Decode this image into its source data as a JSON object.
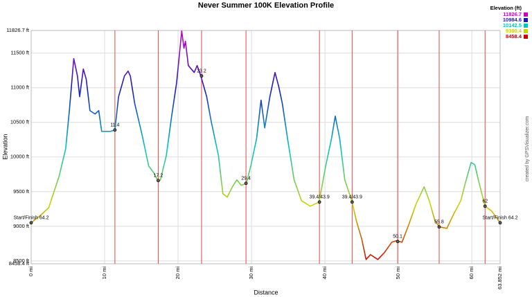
{
  "chart_data": {
    "type": "line",
    "title": "Never Summer 100K Elevation Profile",
    "x_label": "Distance",
    "y_label": "Elevation",
    "credit": "created by GPSVisualizer.com",
    "xlim": [
      0,
      63.852
    ],
    "ylim": [
      8458.4,
      11826.7
    ],
    "xticks": [
      {
        "value": 0,
        "label": "0 mi"
      },
      {
        "value": 10,
        "label": "10 mi"
      },
      {
        "value": 20,
        "label": "20 mi"
      },
      {
        "value": 30,
        "label": "30 mi"
      },
      {
        "value": 40,
        "label": "40 mi"
      },
      {
        "value": 50,
        "label": "50 mi"
      },
      {
        "value": 60,
        "label": "60 mi"
      },
      {
        "value": 63.852,
        "label": "63.852 mi"
      }
    ],
    "yticks": [
      {
        "value": 8458.4,
        "label": "8458.4 ft"
      },
      {
        "value": 8500,
        "label": "8500 ft"
      },
      {
        "value": 9000,
        "label": "9000 ft"
      },
      {
        "value": 9500,
        "label": "9500 ft"
      },
      {
        "value": 10000,
        "label": "10000 ft"
      },
      {
        "value": 10500,
        "label": "10500 ft"
      },
      {
        "value": 11000,
        "label": "11000 ft"
      },
      {
        "value": 11500,
        "label": "11500 ft"
      },
      {
        "value": 11826.7,
        "label": "11826.7 ft"
      }
    ],
    "grid": true,
    "color_scale_title": "Elevation (ft)",
    "color_scale": [
      {
        "value": 11826.7,
        "color": "#cc00cc"
      },
      {
        "value": 10984.6,
        "color": "#1a1ab8"
      },
      {
        "value": 10142.5,
        "color": "#00c4c4"
      },
      {
        "value": 9300.4,
        "color": "#c8d400"
      },
      {
        "value": 8458.4,
        "color": "#cc0000"
      }
    ],
    "series": [
      {
        "x": [
          0,
          1.4,
          2.4,
          2.8,
          3.8,
          4.7,
          5.2,
          5.8,
          6.3,
          6.6,
          7.1,
          7.5,
          8.0,
          8.7,
          9.2,
          9.6,
          10.8,
          11.4,
          11.9,
          12.7,
          13.2,
          13.5,
          14.1,
          15.1,
          16.0,
          16.7,
          17.3,
          17.6,
          18.4,
          19.1,
          19.8,
          20.5,
          20.8,
          21.0,
          21.4,
          22.2,
          22.6,
          23.1,
          23.9,
          24.5,
          25.5,
          26.1,
          26.7,
          27.4,
          28.0,
          28.6,
          29.3,
          29.9,
          30.7,
          31.3,
          31.8,
          32.5,
          33.2,
          33.7,
          34.2,
          34.9,
          35.8,
          36.8,
          38.0,
          39.2,
          40.1,
          40.9,
          41.4,
          42.0,
          42.7,
          43.7,
          44.3,
          45.0,
          45.6,
          46.2,
          47.2,
          48.1,
          49.1,
          49.7,
          50.5,
          51.4,
          52.4,
          53.5,
          54.2,
          55.0,
          55.6,
          56.6,
          57.5,
          58.5,
          59.1,
          59.9,
          60.4,
          61.0,
          61.8,
          62.7,
          63.852
        ],
        "values": [
          9050,
          9170,
          9270,
          9400,
          9720,
          10120,
          10670,
          11420,
          11170,
          10870,
          11270,
          11120,
          10670,
          10620,
          10670,
          10370,
          10370,
          10390,
          10870,
          11170,
          11240,
          11170,
          10770,
          10320,
          9870,
          9770,
          9650,
          9670,
          10020,
          10570,
          11070,
          11820,
          11570,
          11670,
          11320,
          11220,
          11320,
          11170,
          10870,
          10520,
          10020,
          9470,
          9420,
          9570,
          9670,
          9590,
          9620,
          9870,
          10270,
          10820,
          10420,
          10870,
          11220,
          11020,
          10770,
          10270,
          9670,
          9370,
          9290,
          9350,
          9870,
          10270,
          10590,
          10270,
          9670,
          9350,
          9070,
          8820,
          8520,
          8590,
          8520,
          8620,
          8770,
          8790,
          8770,
          9020,
          9320,
          9570,
          9370,
          9070,
          8990,
          8970,
          9170,
          9370,
          9620,
          9920,
          9890,
          9620,
          9290,
          9220,
          9050
        ]
      }
    ],
    "marker_lines": {
      "color": "#e04848",
      "x": [
        11.4,
        17.3,
        23.2,
        29.25,
        39.25,
        43.7,
        49.9,
        55.55,
        61.8
      ]
    },
    "waypoints": [
      {
        "label": "Start/Finish 64.2",
        "x": 0,
        "y": 9050
      },
      {
        "label": "11.4",
        "x": 11.4,
        "y": 10390
      },
      {
        "label": "17.2",
        "x": 17.3,
        "y": 9660
      },
      {
        "label": "23.2",
        "x": 23.2,
        "y": 11170
      },
      {
        "label": "29.4",
        "x": 29.25,
        "y": 9620
      },
      {
        "label": "39.4/43.9",
        "x": 39.25,
        "y": 9350
      },
      {
        "label": "39.4/43.9",
        "x": 43.7,
        "y": 9350
      },
      {
        "label": "50.1",
        "x": 49.9,
        "y": 8780
      },
      {
        "label": "55.8",
        "x": 55.55,
        "y": 8990
      },
      {
        "label": "62",
        "x": 61.8,
        "y": 9290
      },
      {
        "label": "Start/Finish 64.2",
        "x": 63.852,
        "y": 9050
      }
    ]
  }
}
